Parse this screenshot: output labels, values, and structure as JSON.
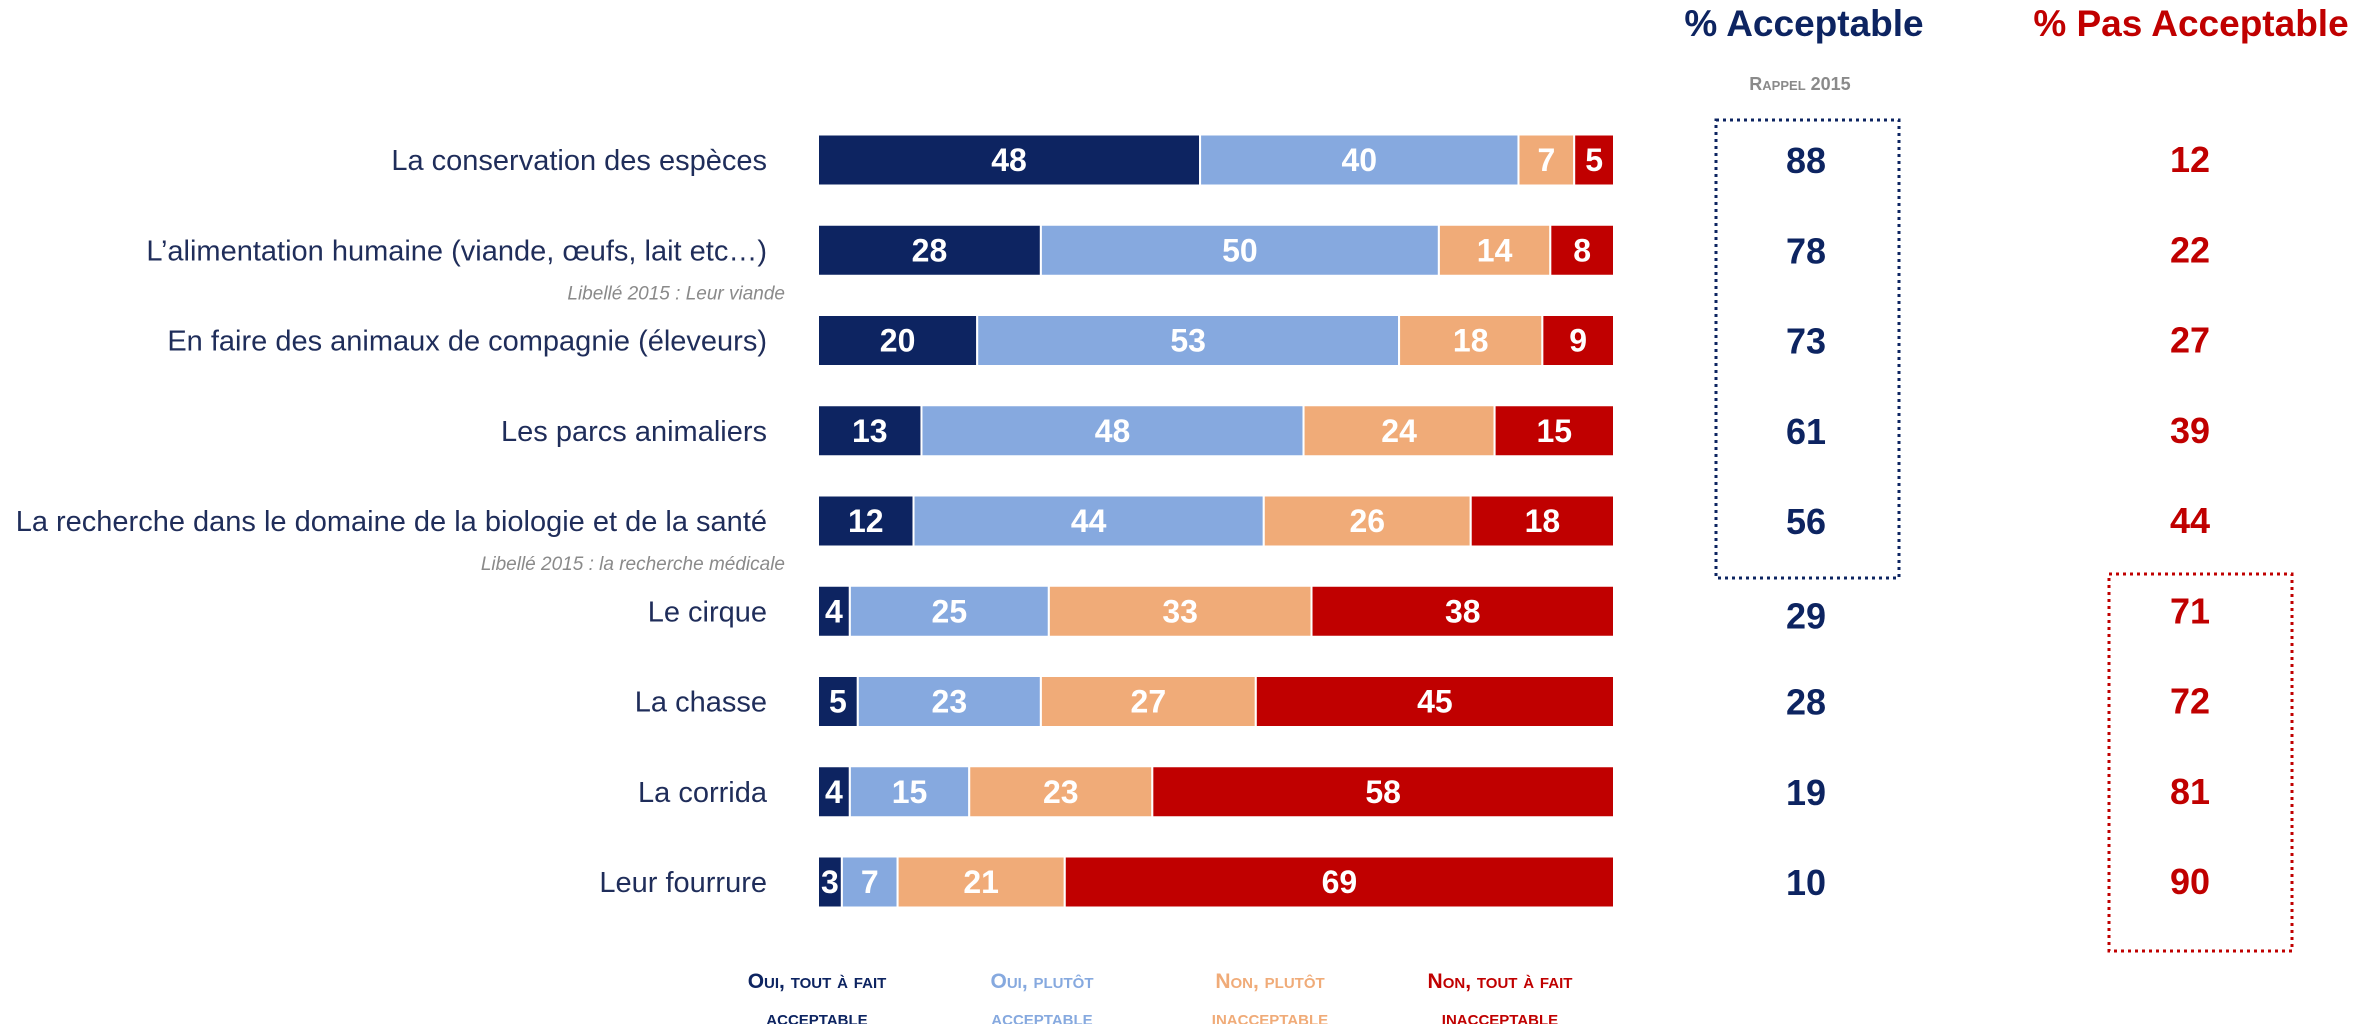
{
  "colors": {
    "navy": "#0d2461",
    "light_blue": "#86a9df",
    "peach": "#f0ab78",
    "red": "#c00000",
    "category_text": "#1f2d5a",
    "note_text": "#8a8a8a"
  },
  "headers": {
    "acceptable": "% Acceptable",
    "pas_acceptable": "% Pas Acceptable",
    "rappel": "Rappel 2015"
  },
  "chart_data": {
    "type": "bar",
    "orientation": "horizontal",
    "stacked": true,
    "unit": "%",
    "categories": [
      "La conservation des espèces",
      "L’alimentation humaine (viande, œufs, lait etc…)",
      "En faire des animaux de compagnie (éleveurs)",
      "Les parcs animaliers",
      "La recherche dans le domaine de la biologie et de la santé",
      "Le cirque",
      "La chasse",
      "La corrida",
      "Leur fourrure"
    ],
    "notes": [
      "",
      "Libellé 2015 : Leur viande",
      "",
      "",
      "Libellé 2015 : la recherche médicale",
      "",
      "",
      "",
      ""
    ],
    "series": [
      {
        "name": "Oui, tout à fait acceptable",
        "legend": [
          "Oui, tout à fait",
          "acceptable"
        ],
        "color": "#0d2461",
        "values": [
          48,
          28,
          20,
          13,
          12,
          4,
          5,
          4,
          3
        ]
      },
      {
        "name": "Oui, plutôt acceptable",
        "legend": [
          "Oui, plutôt",
          "acceptable"
        ],
        "color": "#86a9df",
        "values": [
          40,
          50,
          53,
          48,
          44,
          25,
          23,
          15,
          7
        ]
      },
      {
        "name": "Non, plutôt inacceptable",
        "legend": [
          "Non, plutôt",
          "inacceptable"
        ],
        "color": "#f0ab78",
        "values": [
          7,
          14,
          18,
          24,
          26,
          33,
          27,
          23,
          21
        ]
      },
      {
        "name": "Non, tout à fait inacceptable",
        "legend": [
          "Non, tout à fait",
          "inacceptable"
        ],
        "color": "#c00000",
        "values": [
          5,
          8,
          9,
          15,
          18,
          38,
          45,
          58,
          69
        ]
      }
    ],
    "acceptable_totals": [
      88,
      78,
      73,
      61,
      56,
      29,
      28,
      19,
      10
    ],
    "pas_acceptable_totals": [
      12,
      22,
      27,
      39,
      44,
      71,
      72,
      81,
      90
    ],
    "xlim": [
      0,
      100
    ],
    "legend_position": "bottom"
  }
}
